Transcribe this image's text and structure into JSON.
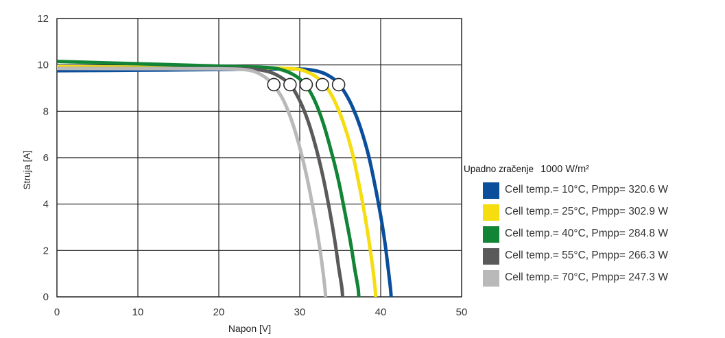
{
  "chart_data": {
    "type": "line",
    "xlabel": "Napon [V]",
    "ylabel": "Struja [A]",
    "xlim": [
      0,
      50
    ],
    "ylim": [
      0,
      12
    ],
    "xticks": [
      0,
      10,
      20,
      30,
      40,
      50
    ],
    "yticks": [
      0,
      2,
      4,
      6,
      8,
      10,
      12
    ],
    "grid": true,
    "legend": {
      "title": "Upadno zračenje",
      "subtitle": "1000 W/m²",
      "placement": "right"
    },
    "series": [
      {
        "name": "Cell temp.= 10°C, Pmpp= 320.6 W",
        "color": "#0b4f9c",
        "points": [
          [
            0,
            9.75
          ],
          [
            10,
            9.77
          ],
          [
            20,
            9.8
          ],
          [
            25,
            9.82
          ],
          [
            29,
            9.83
          ],
          [
            31,
            9.8
          ],
          [
            32.5,
            9.7
          ],
          [
            33.5,
            9.55
          ],
          [
            34.5,
            9.3
          ],
          [
            35.5,
            8.85
          ],
          [
            36.5,
            8.2
          ],
          [
            37.5,
            7.3
          ],
          [
            38.5,
            6.1
          ],
          [
            39.3,
            4.8
          ],
          [
            40,
            3.5
          ],
          [
            40.5,
            2.4
          ],
          [
            40.9,
            1.3
          ],
          [
            41.2,
            0.4
          ],
          [
            41.3,
            0
          ]
        ],
        "mpp": [
          34.8,
          9.15
        ]
      },
      {
        "name": "Cell temp.= 25°C, Pmpp= 302.9 W",
        "color": "#f5dd10",
        "points": [
          [
            0,
            9.92
          ],
          [
            10,
            9.9
          ],
          [
            20,
            9.88
          ],
          [
            25,
            9.87
          ],
          [
            28,
            9.85
          ],
          [
            30,
            9.8
          ],
          [
            31.5,
            9.6
          ],
          [
            32.5,
            9.35
          ],
          [
            33.5,
            8.95
          ],
          [
            34.5,
            8.3
          ],
          [
            35.5,
            7.4
          ],
          [
            36.5,
            6.2
          ],
          [
            37.3,
            4.9
          ],
          [
            38,
            3.6
          ],
          [
            38.6,
            2.3
          ],
          [
            39,
            1.3
          ],
          [
            39.3,
            0.4
          ],
          [
            39.4,
            0
          ]
        ],
        "mpp": [
          32.8,
          9.15
        ]
      },
      {
        "name": "Cell temp.= 40°C, Pmpp= 284.8 W",
        "color": "#118436",
        "points": [
          [
            0,
            10.15
          ],
          [
            10,
            10.05
          ],
          [
            20,
            9.95
          ],
          [
            25,
            9.9
          ],
          [
            27,
            9.85
          ],
          [
            28.5,
            9.7
          ],
          [
            29.8,
            9.45
          ],
          [
            30.8,
            9.1
          ],
          [
            31.8,
            8.5
          ],
          [
            32.8,
            7.6
          ],
          [
            33.8,
            6.4
          ],
          [
            34.8,
            5.0
          ],
          [
            35.6,
            3.6
          ],
          [
            36.3,
            2.3
          ],
          [
            36.8,
            1.2
          ],
          [
            37.2,
            0.4
          ],
          [
            37.3,
            0
          ]
        ],
        "mpp": [
          30.8,
          9.15
        ]
      },
      {
        "name": "Cell temp.= 55°C, Pmpp= 266.3 W",
        "color": "#5a5a5a",
        "points": [
          [
            0,
            9.85
          ],
          [
            10,
            9.85
          ],
          [
            20,
            9.85
          ],
          [
            24,
            9.82
          ],
          [
            26,
            9.72
          ],
          [
            27.5,
            9.5
          ],
          [
            28.8,
            9.15
          ],
          [
            29.8,
            8.6
          ],
          [
            30.8,
            7.8
          ],
          [
            31.8,
            6.7
          ],
          [
            32.8,
            5.3
          ],
          [
            33.6,
            3.9
          ],
          [
            34.3,
            2.5
          ],
          [
            34.8,
            1.3
          ],
          [
            35.2,
            0.4
          ],
          [
            35.3,
            0
          ]
        ],
        "mpp": [
          28.8,
          9.15
        ]
      },
      {
        "name": "Cell temp.= 70°C, Pmpp= 247.3 W",
        "color": "#b9b9b9",
        "points": [
          [
            0,
            9.85
          ],
          [
            10,
            9.84
          ],
          [
            20,
            9.83
          ],
          [
            23,
            9.8
          ],
          [
            24.5,
            9.7
          ],
          [
            25.8,
            9.45
          ],
          [
            26.8,
            9.1
          ],
          [
            27.8,
            8.6
          ],
          [
            28.8,
            7.8
          ],
          [
            29.8,
            6.7
          ],
          [
            30.8,
            5.3
          ],
          [
            31.6,
            3.9
          ],
          [
            32.3,
            2.5
          ],
          [
            32.8,
            1.3
          ],
          [
            33.1,
            0.4
          ],
          [
            33.2,
            0
          ]
        ],
        "mpp": [
          26.8,
          9.15
        ]
      }
    ]
  }
}
